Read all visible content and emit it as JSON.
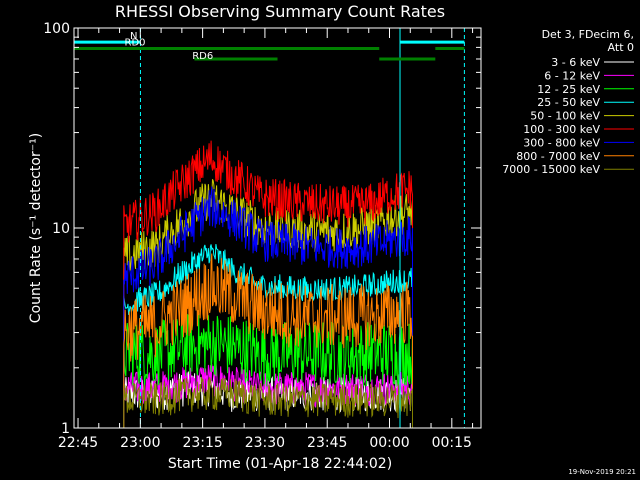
{
  "chart_data": {
    "type": "line",
    "title": "RHESSI Observing Summary Count Rates",
    "xlabel": "Start Time (01-Apr-18 22:44:02)",
    "ylabel": "Count Rate (s⁻¹ detector⁻¹)",
    "y_scale": "log",
    "ylim": [
      1,
      100
    ],
    "y_tick_labels": [
      "1",
      "10",
      "100"
    ],
    "x_unit": "minutes after 22:44:02",
    "xlim": [
      0,
      98
    ],
    "x_ticks": [
      {
        "label": "22:45",
        "minutes": 0.97
      },
      {
        "label": "23:00",
        "minutes": 15.97
      },
      {
        "label": "23:15",
        "minutes": 30.97
      },
      {
        "label": "23:30",
        "minutes": 45.97
      },
      {
        "label": "23:45",
        "minutes": 60.97
      },
      {
        "label": "00:00",
        "minutes": 75.97
      },
      {
        "label": "00:15",
        "minutes": 90.97
      }
    ],
    "data_start_minutes": 12.0,
    "data_end_minutes": 81.5,
    "legend_position": "right, outside plot",
    "legend_header": [
      "Det 3, FDecim 6,",
      "Att 0"
    ],
    "series": [
      {
        "name": "3 - 6 keV",
        "color": "#ffffff",
        "level_x": [
          12,
          20,
          27,
          33,
          38,
          45,
          55,
          65,
          72,
          76,
          81.5
        ],
        "level_y": [
          1.5,
          1.5,
          1.6,
          1.6,
          1.5,
          1.5,
          1.5,
          1.5,
          1.5,
          1.5,
          1.5
        ],
        "noise_up": 1.2,
        "noise_down": 0.8
      },
      {
        "name": "6 - 12 keV",
        "color": "#ff00ff",
        "level_x": [
          12,
          20,
          27,
          33,
          38,
          45,
          55,
          65,
          72,
          76,
          81.5
        ],
        "level_y": [
          1.6,
          1.6,
          1.7,
          1.8,
          1.7,
          1.6,
          1.6,
          1.6,
          1.6,
          1.6,
          1.6
        ],
        "noise_up": 1.2,
        "noise_down": 0.8
      },
      {
        "name": "12 - 25 keV",
        "color": "#00ff00",
        "level_x": [
          12,
          20,
          27,
          33,
          38,
          45,
          55,
          65,
          72,
          76,
          81.5
        ],
        "level_y": [
          2.3,
          2.3,
          2.5,
          2.6,
          2.5,
          2.3,
          2.3,
          2.3,
          2.3,
          2.3,
          2.3
        ],
        "noise_up": 1.5,
        "noise_down": 0.7
      },
      {
        "name": "25 - 50 keV",
        "color": "#00ffff",
        "level_x": [
          12,
          20,
          27,
          33,
          38,
          45,
          55,
          65,
          72,
          76,
          81.5
        ],
        "level_y": [
          4.0,
          4.5,
          6.0,
          7.5,
          6.0,
          5.0,
          4.8,
          4.8,
          5.0,
          5.2,
          5.4
        ],
        "noise_up": 1.2,
        "noise_down": 0.9
      },
      {
        "name": "50 - 100 keV",
        "color": "#cccc00",
        "level_x": [
          12,
          20,
          27,
          33,
          38,
          45,
          55,
          65,
          72,
          76,
          81.5
        ],
        "level_y": [
          7.0,
          8.0,
          11.0,
          14.0,
          12.0,
          10.0,
          9.5,
          9.5,
          10.0,
          11.0,
          12.0
        ],
        "noise_up": 1.3,
        "noise_down": 0.8
      },
      {
        "name": "100 - 300 keV",
        "color": "#ff0000",
        "level_x": [
          12,
          20,
          27,
          33,
          38,
          45,
          55,
          65,
          72,
          76,
          81.5
        ],
        "level_y": [
          10.0,
          12.0,
          17.0,
          22.0,
          18.0,
          14.0,
          13.0,
          12.5,
          13.0,
          14.5,
          15.5
        ],
        "noise_up": 1.3,
        "noise_down": 0.8
      },
      {
        "name": "300 - 800 keV",
        "color": "#0000ff",
        "level_x": [
          12,
          20,
          27,
          33,
          38,
          45,
          55,
          65,
          72,
          76,
          81.5
        ],
        "level_y": [
          5.5,
          6.5,
          9.5,
          12.5,
          11.0,
          8.5,
          8.0,
          7.8,
          8.0,
          8.5,
          9.0
        ],
        "noise_up": 1.3,
        "noise_down": 0.8
      },
      {
        "name": "800 - 7000 keV",
        "color": "#ff8000",
        "level_x": [
          12,
          20,
          27,
          33,
          38,
          45,
          55,
          65,
          72,
          76,
          81.5
        ],
        "level_y": [
          3.0,
          3.2,
          4.0,
          5.0,
          4.5,
          3.8,
          3.5,
          3.5,
          3.5,
          3.6,
          3.7
        ],
        "noise_up": 1.5,
        "noise_down": 0.7
      },
      {
        "name": "7000 - 15000 keV",
        "color": "#808000",
        "level_x": [
          12,
          20,
          27,
          33,
          38,
          45,
          55,
          65,
          72,
          76,
          81.5
        ],
        "level_y": [
          1.4,
          1.4,
          1.5,
          1.5,
          1.5,
          1.4,
          1.4,
          1.4,
          1.4,
          1.4,
          1.4
        ],
        "noise_up": 1.2,
        "noise_down": 0.8
      }
    ],
    "annotations": {
      "vertical_lines": [
        {
          "minutes": 0.0,
          "color": "#00ffff",
          "style": "solid"
        },
        {
          "minutes": 16.0,
          "color": "#00ffff",
          "style": "dashed"
        },
        {
          "minutes": 78.5,
          "color": "#00ffff",
          "style": "solid"
        },
        {
          "minutes": 94.0,
          "color": "#00ffff",
          "style": "dashed"
        }
      ],
      "bars": [
        {
          "label": "N",
          "color": "#00ffff",
          "x1": 0.0,
          "x2": 16.0,
          "y": 85
        },
        {
          "label": "",
          "color": "#00ffff",
          "x1": 78.5,
          "x2": 94.0,
          "y": 85
        },
        {
          "label": "RD0",
          "color": "#008000",
          "x1": 0.0,
          "x2": 49.0,
          "y": 79
        },
        {
          "label": "",
          "color": "#008000",
          "x1": 49.0,
          "x2": 73.5,
          "y": 79
        },
        {
          "label": "",
          "color": "#008000",
          "x1": 87.0,
          "x2": 94.0,
          "y": 79
        },
        {
          "label": "RD6",
          "color": "#008000",
          "x1": 29.0,
          "x2": 49.0,
          "y": 70
        },
        {
          "label": "",
          "color": "#008000",
          "x1": 73.5,
          "x2": 87.0,
          "y": 70
        }
      ]
    }
  },
  "footer": {
    "date_stamp": "19-Nov-2019 20:21"
  }
}
